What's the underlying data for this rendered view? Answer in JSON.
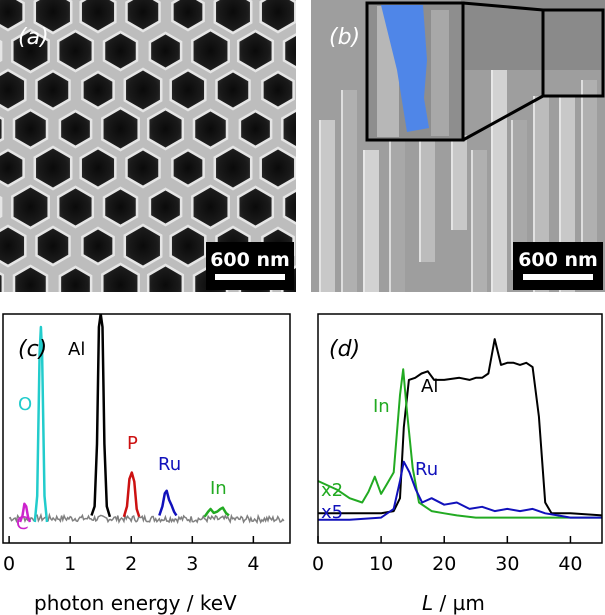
{
  "panels": {
    "a": {
      "label": "(a)",
      "scalebar": "600 nm"
    },
    "b": {
      "label": "(b)",
      "scalebar": "600 nm"
    },
    "c": {
      "label": "(c)"
    },
    "d": {
      "label": "(d)"
    }
  },
  "colors": {
    "O": "#22cccc",
    "C": "#cc22cc",
    "Al": "#000000",
    "P": "#cc1111",
    "Ru": "#1111bb",
    "In": "#22aa22",
    "noise": "#808080",
    "inset_highlight": "#4f86e8"
  },
  "chart_data": [
    {
      "panel": "c",
      "type": "line",
      "xlabel": "photon energy / keV",
      "ylabel": "",
      "xlim": [
        -0.1,
        4.6
      ],
      "xticks": [
        "0",
        "1",
        "2",
        "3",
        "4"
      ],
      "element_labels": [
        "O",
        "C",
        "Al",
        "P",
        "Ru",
        "In"
      ],
      "series": [
        {
          "name": "C",
          "x": [
            0.18,
            0.22,
            0.25,
            0.28,
            0.31,
            0.34
          ],
          "y": [
            0.0,
            0.05,
            0.14,
            0.12,
            0.04,
            0.0
          ]
        },
        {
          "name": "O",
          "x": [
            0.42,
            0.46,
            0.5,
            0.52,
            0.54,
            0.58,
            0.62
          ],
          "y": [
            0.0,
            0.2,
            1.3,
            1.5,
            1.3,
            0.2,
            0.0
          ]
        },
        {
          "name": "Al",
          "x": [
            1.35,
            1.4,
            1.44,
            1.47,
            1.5,
            1.53,
            1.56,
            1.6,
            1.65
          ],
          "y": [
            0.05,
            0.12,
            0.6,
            1.5,
            1.6,
            1.5,
            0.6,
            0.12,
            0.04
          ]
        },
        {
          "name": "P",
          "x": [
            1.88,
            1.93,
            1.97,
            2.01,
            2.05,
            2.09,
            2.13
          ],
          "y": [
            0.04,
            0.12,
            0.33,
            0.38,
            0.31,
            0.1,
            0.04
          ]
        },
        {
          "name": "Ru",
          "x": [
            2.46,
            2.51,
            2.55,
            2.58,
            2.62,
            2.66,
            2.7,
            2.74
          ],
          "y": [
            0.05,
            0.12,
            0.22,
            0.24,
            0.17,
            0.13,
            0.08,
            0.05
          ]
        },
        {
          "name": "In",
          "x": [
            3.2,
            3.26,
            3.3,
            3.35,
            3.41,
            3.46,
            3.5,
            3.55,
            3.6
          ],
          "y": [
            0.04,
            0.08,
            0.1,
            0.07,
            0.08,
            0.1,
            0.11,
            0.07,
            0.05
          ]
        }
      ]
    },
    {
      "panel": "d",
      "type": "line",
      "xlabel": "L / µm",
      "ylabel": "",
      "xlim": [
        0,
        45
      ],
      "xticks": [
        "0",
        "10",
        "20",
        "30",
        "40"
      ],
      "annotations": [
        "x2",
        "x5"
      ],
      "series": [
        {
          "name": "Al",
          "x": [
            0,
            10,
            12,
            13,
            13.6,
            14.4,
            15.4,
            16.4,
            17.4,
            18.4,
            20,
            22.4,
            24,
            25,
            26,
            27,
            28,
            29,
            30,
            31,
            32,
            33,
            34,
            35,
            36,
            37,
            40,
            45
          ],
          "y": [
            0.05,
            0.05,
            0.06,
            0.12,
            0.45,
            0.67,
            0.68,
            0.7,
            0.71,
            0.67,
            0.67,
            0.68,
            0.67,
            0.68,
            0.68,
            0.7,
            0.86,
            0.74,
            0.75,
            0.75,
            0.74,
            0.75,
            0.73,
            0.5,
            0.1,
            0.05,
            0.05,
            0.04
          ]
        },
        {
          "name": "In",
          "x": [
            0,
            3,
            5,
            7,
            8,
            9,
            10,
            11,
            12,
            13,
            13.5,
            14,
            15,
            16,
            18,
            20,
            22,
            25,
            30,
            35,
            40,
            45
          ],
          "y": [
            0.2,
            0.16,
            0.12,
            0.1,
            0.15,
            0.22,
            0.14,
            0.19,
            0.24,
            0.6,
            0.72,
            0.55,
            0.26,
            0.1,
            0.06,
            0.05,
            0.04,
            0.03,
            0.03,
            0.03,
            0.03,
            0.03
          ]
        },
        {
          "name": "Ru",
          "x": [
            0,
            5,
            10,
            12,
            13,
            13.6,
            14.5,
            15.5,
            16.5,
            18,
            20,
            22,
            24,
            26,
            28,
            30,
            32,
            34,
            36,
            38,
            40,
            45
          ],
          "y": [
            0.02,
            0.02,
            0.03,
            0.07,
            0.2,
            0.29,
            0.24,
            0.16,
            0.1,
            0.12,
            0.09,
            0.1,
            0.07,
            0.08,
            0.06,
            0.07,
            0.06,
            0.07,
            0.05,
            0.04,
            0.03,
            0.03
          ]
        }
      ]
    }
  ]
}
